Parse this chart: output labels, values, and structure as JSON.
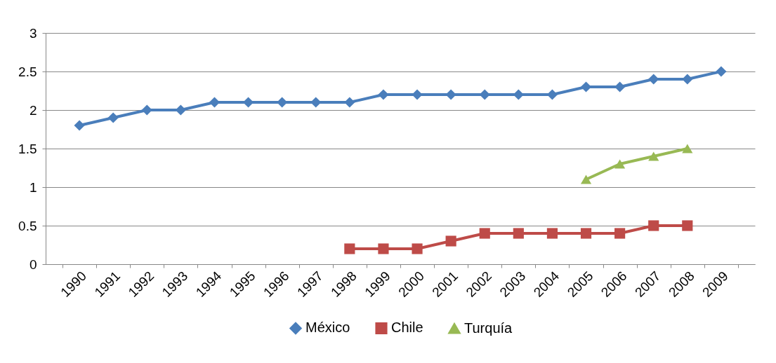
{
  "chart_data": {
    "type": "line",
    "categories": [
      "1990",
      "1991",
      "1992",
      "1993",
      "1994",
      "1995",
      "1996",
      "1997",
      "1998",
      "1999",
      "2000",
      "2001",
      "2002",
      "2003",
      "2004",
      "2005",
      "2006",
      "2007",
      "2008",
      "2009"
    ],
    "series": [
      {
        "name": "México",
        "color": "#4a7ebb",
        "marker": "diamond",
        "values": [
          1.8,
          1.9,
          2.0,
          2.0,
          2.1,
          2.1,
          2.1,
          2.1,
          2.1,
          2.2,
          2.2,
          2.2,
          2.2,
          2.2,
          2.2,
          2.3,
          2.3,
          2.4,
          2.4,
          2.5
        ]
      },
      {
        "name": "Chile",
        "color": "#be4b48",
        "marker": "square",
        "values": [
          null,
          null,
          null,
          null,
          null,
          null,
          null,
          null,
          0.2,
          0.2,
          0.2,
          0.3,
          0.4,
          0.4,
          0.4,
          0.4,
          0.4,
          0.5,
          0.5,
          null
        ]
      },
      {
        "name": "Turquía",
        "color": "#98b954",
        "marker": "triangle",
        "values": [
          null,
          null,
          null,
          null,
          null,
          null,
          null,
          null,
          null,
          null,
          null,
          null,
          null,
          null,
          null,
          1.1,
          1.3,
          1.4,
          1.5,
          null
        ]
      }
    ],
    "ylim": [
      0,
      3
    ],
    "yticks": [
      0,
      0.5,
      1,
      1.5,
      2,
      2.5,
      3
    ],
    "grid": "y",
    "legend": "bottom",
    "line_style": "solid"
  }
}
